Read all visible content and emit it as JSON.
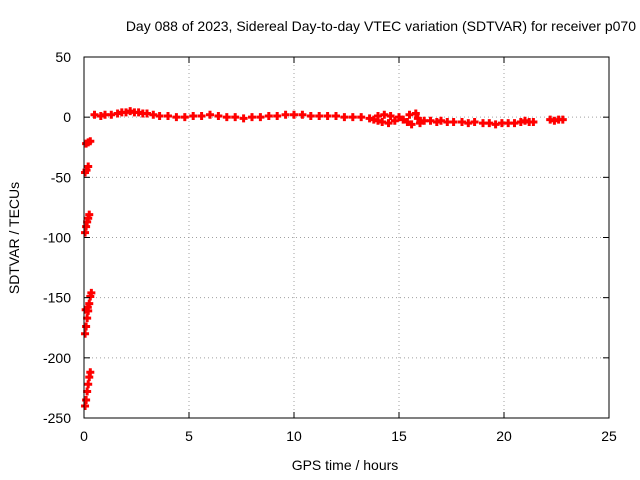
{
  "chart_data": {
    "type": "scatter",
    "title": "Day 088 of 2023, Sidereal Day-to-day VTEC variation (SDTVAR) for receiver p070",
    "xlabel": "GPS time / hours",
    "ylabel": "SDTVAR / TECUs",
    "xlim": [
      0,
      25
    ],
    "ylim": [
      -250,
      50
    ],
    "xticks": [
      0,
      5,
      10,
      15,
      20,
      25
    ],
    "yticks": [
      50,
      0,
      -50,
      -100,
      -150,
      -200,
      -250
    ],
    "grid": true,
    "marker": "+",
    "series": [
      {
        "name": "SDTVAR",
        "color": "#ff0000",
        "points": [
          [
            0.05,
            -240
          ],
          [
            0.1,
            -235
          ],
          [
            0.15,
            -228
          ],
          [
            0.2,
            -222
          ],
          [
            0.25,
            -216
          ],
          [
            0.3,
            -212
          ],
          [
            0.05,
            -180
          ],
          [
            0.1,
            -174
          ],
          [
            0.15,
            -167
          ],
          [
            0.2,
            -161
          ],
          [
            0.25,
            -155
          ],
          [
            0.3,
            -149
          ],
          [
            0.35,
            -146
          ],
          [
            0.08,
            -160
          ],
          [
            0.18,
            -158
          ],
          [
            0.05,
            -96
          ],
          [
            0.1,
            -91
          ],
          [
            0.15,
            -87
          ],
          [
            0.2,
            -84
          ],
          [
            0.25,
            -81
          ],
          [
            0.05,
            -46
          ],
          [
            0.12,
            -44
          ],
          [
            0.2,
            -41
          ],
          [
            0.1,
            -22
          ],
          [
            0.2,
            -21
          ],
          [
            0.3,
            -20
          ],
          [
            0.5,
            2
          ],
          [
            0.8,
            1
          ],
          [
            1.0,
            2
          ],
          [
            1.3,
            2
          ],
          [
            1.6,
            3
          ],
          [
            1.8,
            4
          ],
          [
            2.0,
            4
          ],
          [
            2.2,
            5
          ],
          [
            2.4,
            4
          ],
          [
            2.6,
            4
          ],
          [
            2.8,
            3
          ],
          [
            3.0,
            3
          ],
          [
            3.3,
            2
          ],
          [
            3.6,
            1
          ],
          [
            4.0,
            1
          ],
          [
            4.4,
            0
          ],
          [
            4.8,
            0
          ],
          [
            5.2,
            1
          ],
          [
            5.6,
            1
          ],
          [
            6.0,
            2
          ],
          [
            6.4,
            1
          ],
          [
            6.8,
            0
          ],
          [
            7.2,
            0
          ],
          [
            7.6,
            -1
          ],
          [
            8.0,
            0
          ],
          [
            8.4,
            0
          ],
          [
            8.8,
            1
          ],
          [
            9.2,
            1
          ],
          [
            9.6,
            2
          ],
          [
            10.0,
            2
          ],
          [
            10.4,
            2
          ],
          [
            10.8,
            1
          ],
          [
            11.2,
            1
          ],
          [
            11.6,
            1
          ],
          [
            12.0,
            1
          ],
          [
            12.4,
            0
          ],
          [
            12.8,
            0
          ],
          [
            13.2,
            0
          ],
          [
            13.6,
            -1
          ],
          [
            13.8,
            -2
          ],
          [
            14.0,
            1
          ],
          [
            14.0,
            -3
          ],
          [
            14.2,
            -4
          ],
          [
            14.3,
            2
          ],
          [
            14.5,
            -5
          ],
          [
            14.6,
            1
          ],
          [
            14.8,
            -3
          ],
          [
            15.0,
            0
          ],
          [
            15.2,
            -2
          ],
          [
            15.4,
            -4
          ],
          [
            15.5,
            2
          ],
          [
            15.6,
            -6
          ],
          [
            15.8,
            3
          ],
          [
            15.9,
            -1
          ],
          [
            16.0,
            -5
          ],
          [
            16.2,
            -3
          ],
          [
            16.5,
            -3
          ],
          [
            16.8,
            -4
          ],
          [
            17.0,
            -3
          ],
          [
            17.3,
            -4
          ],
          [
            17.6,
            -4
          ],
          [
            18.0,
            -4
          ],
          [
            18.3,
            -5
          ],
          [
            18.6,
            -4
          ],
          [
            19.0,
            -5
          ],
          [
            19.3,
            -5
          ],
          [
            19.6,
            -6
          ],
          [
            19.9,
            -5
          ],
          [
            20.2,
            -5
          ],
          [
            20.5,
            -5
          ],
          [
            20.8,
            -4
          ],
          [
            21.0,
            -3
          ],
          [
            21.2,
            -4
          ],
          [
            21.4,
            -4
          ],
          [
            22.2,
            -2
          ],
          [
            22.4,
            -3
          ],
          [
            22.6,
            -2
          ],
          [
            22.8,
            -2
          ]
        ]
      }
    ]
  }
}
